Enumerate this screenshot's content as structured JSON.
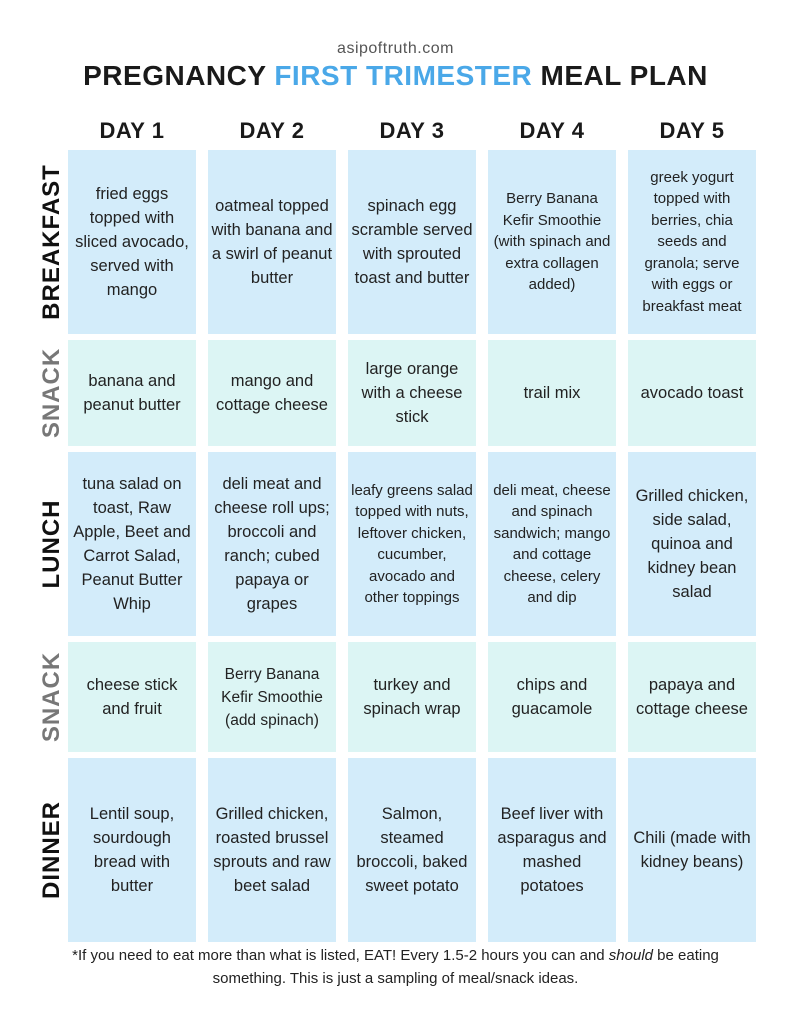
{
  "site": "asipoftruth.com",
  "title": {
    "part1": "PREGNANCY ",
    "accent": "FIRST TRIMESTER",
    "part2": " MEAL PLAN"
  },
  "days": [
    "DAY 1",
    "DAY 2",
    "DAY 3",
    "DAY 4",
    "DAY 5"
  ],
  "rows": [
    "BREAKFAST",
    "SNACK",
    "LUNCH",
    "SNACK",
    "DINNER"
  ],
  "cells": [
    [
      "fried eggs topped with sliced avocado, served with mango",
      "oatmeal topped with banana and a swirl of peanut butter",
      "spinach egg scramble served with sprouted toast and butter",
      "Berry Banana Kefir Smoothie (with spinach and extra collagen added)",
      "greek yogurt topped with berries, chia seeds and granola; serve with eggs or breakfast meat"
    ],
    [
      "banana and peanut butter",
      "mango and cottage cheese",
      "large orange with a cheese stick",
      "trail mix",
      "avocado toast"
    ],
    [
      "tuna salad on toast, Raw Apple, Beet and Carrot Salad, Peanut Butter Whip",
      "deli meat and cheese roll ups; broccoli and ranch; cubed papaya or grapes",
      "leafy greens salad topped with nuts, leftover chicken, cucumber, avocado and other toppings",
      "deli meat, cheese and spinach sandwich; mango and cottage cheese, celery and dip",
      "Grilled chicken, side salad, quinoa and kidney bean salad"
    ],
    [
      "cheese stick and fruit",
      "Berry Banana Kefir Smoothie (add spinach)",
      "turkey and spinach wrap",
      "chips and guacamole",
      "papaya and cottage cheese"
    ],
    [
      "Lentil soup, sourdough bread with butter",
      "Grilled chicken, roasted brussel sprouts and raw beet salad",
      "Salmon, steamed broccoli, baked sweet potato",
      "Beef liver with asparagus and mashed potatoes",
      "Chili (made with kidney beans)"
    ]
  ],
  "footer": {
    "a": "*If you need to eat more than what is listed, EAT! Every 1.5-2 hours you can and ",
    "em": "should",
    "b": " be eating something. This is just a sampling of meal/snack ideas."
  },
  "colors": {
    "accent": "#4aa8e8",
    "meal_cell": "#d3ecfa",
    "snack_cell": "#dcf5f4",
    "snack_label": "#777777"
  }
}
